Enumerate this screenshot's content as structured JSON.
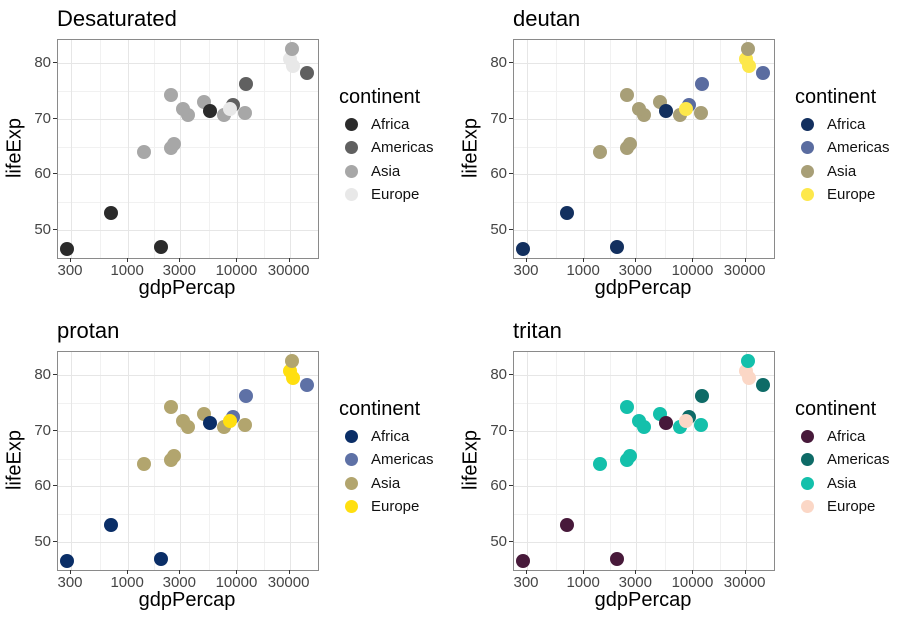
{
  "chart_data": {
    "type": "scatter",
    "xlabel": "gdpPercap",
    "ylabel": "lifeExp",
    "x_scale": "log10",
    "xlim": [
      228,
      55350
    ],
    "ylim": [
      45,
      84.1
    ],
    "grid": "major and minor, light gray",
    "x_ticks": {
      "values": [
        300,
        1000,
        3000,
        10000,
        30000
      ],
      "labels": [
        "300",
        "1000",
        "3000",
        "10000",
        "30000"
      ]
    },
    "x_minor_ticks": [
      548,
      1732,
      5477,
      17321,
      54772
    ],
    "y_ticks": {
      "values": [
        50,
        60,
        70,
        80
      ],
      "labels": [
        "50",
        "60",
        "70",
        "80"
      ]
    },
    "y_minor_ticks": [
      55,
      65,
      75
    ],
    "legend_title": "continent",
    "legend_position": "right",
    "categories": [
      "Africa",
      "Americas",
      "Asia",
      "Europe"
    ],
    "points": [
      {
        "gdpPercap": 1391,
        "lifeExp": 64.1,
        "continent": "Asia"
      },
      {
        "gdpPercap": 9066,
        "lifeExp": 72.4,
        "continent": "Americas"
      },
      {
        "gdpPercap": 4959,
        "lifeExp": 73.0,
        "continent": "Asia"
      },
      {
        "gdpPercap": 278,
        "lifeExp": 46.5,
        "continent": "Africa"
      },
      {
        "gdpPercap": 5581,
        "lifeExp": 71.3,
        "continent": "Africa"
      },
      {
        "gdpPercap": 691,
        "lifeExp": 53.0,
        "continent": "Africa"
      },
      {
        "gdpPercap": 30470,
        "lifeExp": 80.7,
        "continent": "Europe"
      },
      {
        "gdpPercap": 32170,
        "lifeExp": 79.4,
        "continent": "Europe"
      },
      {
        "gdpPercap": 2452,
        "lifeExp": 64.7,
        "continent": "Asia"
      },
      {
        "gdpPercap": 3541,
        "lifeExp": 70.6,
        "continent": "Asia"
      },
      {
        "gdpPercap": 11606,
        "lifeExp": 71.0,
        "continent": "Asia"
      },
      {
        "gdpPercap": 31656,
        "lifeExp": 82.6,
        "continent": "Asia"
      },
      {
        "gdpPercap": 11978,
        "lifeExp": 76.2,
        "continent": "Americas"
      },
      {
        "gdpPercap": 2014,
        "lifeExp": 46.9,
        "continent": "Africa"
      },
      {
        "gdpPercap": 2606,
        "lifeExp": 65.5,
        "continent": "Asia"
      },
      {
        "gdpPercap": 3190,
        "lifeExp": 71.7,
        "continent": "Asia"
      },
      {
        "gdpPercap": 7458,
        "lifeExp": 70.6,
        "continent": "Asia"
      },
      {
        "gdpPercap": 8458,
        "lifeExp": 71.8,
        "continent": "Europe"
      },
      {
        "gdpPercap": 42952,
        "lifeExp": 78.2,
        "continent": "Americas"
      },
      {
        "gdpPercap": 2442,
        "lifeExp": 74.2,
        "continent": "Asia"
      }
    ],
    "panels": [
      {
        "title": "Desaturated",
        "colors": {
          "Africa": "#2b2b2b",
          "Americas": "#606060",
          "Asia": "#a7a7a7",
          "Europe": "#e8e8e8"
        }
      },
      {
        "title": "deutan",
        "colors": {
          "Africa": "#13305f",
          "Americas": "#5a6ca0",
          "Asia": "#a89f77",
          "Europe": "#fde84b"
        }
      },
      {
        "title": "protan",
        "colors": {
          "Africa": "#0a2e67",
          "Americas": "#5e71a6",
          "Asia": "#b2a56e",
          "Europe": "#ffdf10"
        }
      },
      {
        "title": "tritan",
        "colors": {
          "Africa": "#47193a",
          "Americas": "#0e6b67",
          "Asia": "#14c0ab",
          "Europe": "#fbd7c6"
        }
      }
    ]
  },
  "theme": {
    "background": "#ffffff",
    "panel_border": "#8a8a8a",
    "grid_major": "#e6e6e6",
    "grid_minor": "#f1f1f1",
    "tick_mark": "#333333",
    "tick_label": "#454545",
    "text": "#000000"
  }
}
